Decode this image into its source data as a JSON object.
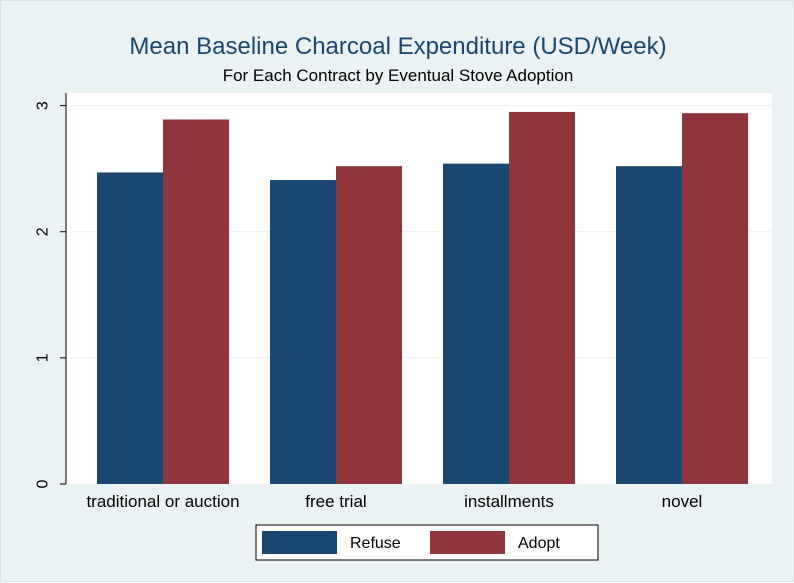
{
  "chart_data": {
    "type": "bar",
    "title": "Mean Baseline Charcoal Expenditure (USD/Week)",
    "subtitle": "For Each Contract by Eventual Stove Adoption",
    "xlabel": "",
    "ylabel": "",
    "categories": [
      "traditional or auction",
      "free trial",
      "installments",
      "novel"
    ],
    "series": [
      {
        "name": "Refuse",
        "color": "#1a476f",
        "values": [
          2.47,
          2.41,
          2.54,
          2.52
        ]
      },
      {
        "name": "Adopt",
        "color": "#90353b",
        "values": [
          2.89,
          2.52,
          2.95,
          2.94
        ]
      }
    ],
    "ylim": [
      0,
      3.1
    ],
    "yticks": [
      "0",
      "1",
      "2",
      "3"
    ],
    "grid": true,
    "legend_position": "bottom"
  }
}
